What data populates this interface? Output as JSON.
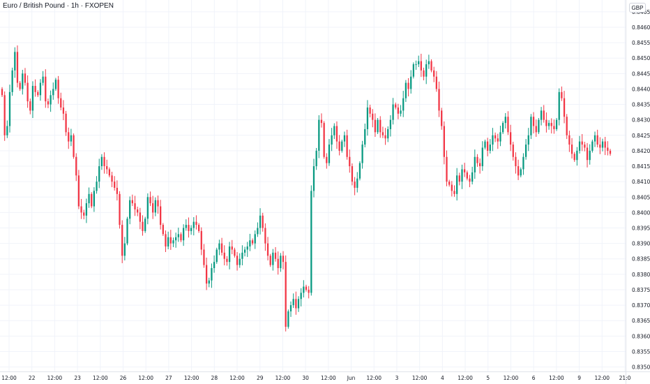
{
  "header": {
    "title": "Euro / British Pound · 1h · FXOPEN",
    "currency": "GBP"
  },
  "colors": {
    "up": "#089981",
    "down": "#f23645",
    "grid": "#f0f3fa",
    "axis_text": "#131722",
    "background": "#ffffff"
  },
  "chart_data": {
    "type": "candlestick",
    "instrument": "Euro / British Pound",
    "interval": "1h",
    "source": "FXOPEN",
    "currency": "GBP",
    "grid": true,
    "ylim": [
      0.835,
      0.847
    ],
    "y_ticks": [
      "0.84650",
      "0.84600",
      "0.84550",
      "0.84500",
      "0.84450",
      "0.84400",
      "0.84350",
      "0.84300",
      "0.84250",
      "0.84200",
      "0.84150",
      "0.84100",
      "0.84050",
      "0.84000",
      "0.83950",
      "0.83900",
      "0.83850",
      "0.83800",
      "0.83750",
      "0.83700",
      "0.83650",
      "0.83600",
      "0.83550",
      "0.83500"
    ],
    "x_ticks": [
      "12:00",
      "22",
      "12:00",
      "23",
      "12:00",
      "26",
      "12:00",
      "27",
      "12:00",
      "28",
      "12:00",
      "29",
      "12:00",
      "30",
      "12:00",
      "Jun",
      "12:00",
      "3",
      "12:00",
      "4",
      "12:00",
      "5",
      "12:00",
      "6",
      "12:00",
      "9",
      "12:00",
      "21:0"
    ],
    "candles_close": [
      0.8438,
      0.8425,
      0.8428,
      0.8439,
      0.8446,
      0.8452,
      0.8442,
      0.844,
      0.8445,
      0.8442,
      0.8436,
      0.8433,
      0.8441,
      0.8439,
      0.8438,
      0.8442,
      0.8444,
      0.8436,
      0.8435,
      0.8438,
      0.844,
      0.8443,
      0.8437,
      0.8434,
      0.8432,
      0.8426,
      0.8423,
      0.8425,
      0.8418,
      0.8412,
      0.8402,
      0.84,
      0.8399,
      0.8403,
      0.8406,
      0.8402,
      0.8407,
      0.841,
      0.8415,
      0.8418,
      0.8415,
      0.8414,
      0.8412,
      0.841,
      0.8408,
      0.8406,
      0.8396,
      0.8386,
      0.839,
      0.8398,
      0.8404,
      0.8403,
      0.8401,
      0.84,
      0.8397,
      0.8394,
      0.8398,
      0.8405,
      0.8403,
      0.84,
      0.8404,
      0.8402,
      0.8396,
      0.8393,
      0.8389,
      0.8392,
      0.839,
      0.8391,
      0.8392,
      0.8393,
      0.8391,
      0.8395,
      0.8396,
      0.8394,
      0.8395,
      0.8397,
      0.8396,
      0.8394,
      0.8388,
      0.8383,
      0.8377,
      0.8378,
      0.8382,
      0.8384,
      0.8388,
      0.839,
      0.8387,
      0.8385,
      0.8384,
      0.8389,
      0.8388,
      0.8386,
      0.8383,
      0.8385,
      0.8387,
      0.8388,
      0.8389,
      0.8391,
      0.839,
      0.8393,
      0.8395,
      0.8399,
      0.8395,
      0.839,
      0.8386,
      0.8383,
      0.8387,
      0.8385,
      0.8382,
      0.8386,
      0.8384,
      0.8363,
      0.8368,
      0.837,
      0.8372,
      0.8369,
      0.8372,
      0.8374,
      0.8376,
      0.8375,
      0.8374,
      0.8407,
      0.8415,
      0.842,
      0.843,
      0.8429,
      0.8418,
      0.8416,
      0.8422,
      0.8425,
      0.8428,
      0.8423,
      0.842,
      0.8423,
      0.8425,
      0.8418,
      0.8415,
      0.841,
      0.8408,
      0.8411,
      0.8416,
      0.8422,
      0.8427,
      0.8434,
      0.8432,
      0.843,
      0.8426,
      0.843,
      0.8426,
      0.8425,
      0.8424,
      0.8427,
      0.843,
      0.8435,
      0.8434,
      0.8432,
      0.8433,
      0.8437,
      0.8442,
      0.844,
      0.8444,
      0.8448,
      0.8448,
      0.8449,
      0.8446,
      0.8444,
      0.8448,
      0.8449,
      0.8446,
      0.8444,
      0.844,
      0.8433,
      0.8428,
      0.8418,
      0.841,
      0.8409,
      0.8407,
      0.8406,
      0.8412,
      0.841,
      0.8414,
      0.8413,
      0.8411,
      0.841,
      0.8413,
      0.8418,
      0.8416,
      0.8415,
      0.8421,
      0.8423,
      0.842,
      0.8422,
      0.8425,
      0.8424,
      0.8423,
      0.8426,
      0.8429,
      0.8431,
      0.8426,
      0.8422,
      0.8418,
      0.8415,
      0.8412,
      0.8414,
      0.8418,
      0.8422,
      0.8425,
      0.8431,
      0.8428,
      0.8426,
      0.843,
      0.8433,
      0.843,
      0.8428,
      0.8429,
      0.8428,
      0.8427,
      0.843,
      0.8439,
      0.8437,
      0.8431,
      0.8425,
      0.8422,
      0.8419,
      0.8417,
      0.842,
      0.8423,
      0.8422,
      0.8421,
      0.8417,
      0.842,
      0.8423,
      0.8425,
      0.8422,
      0.8421,
      0.8423,
      0.8421,
      0.842,
      0.8419
    ]
  }
}
